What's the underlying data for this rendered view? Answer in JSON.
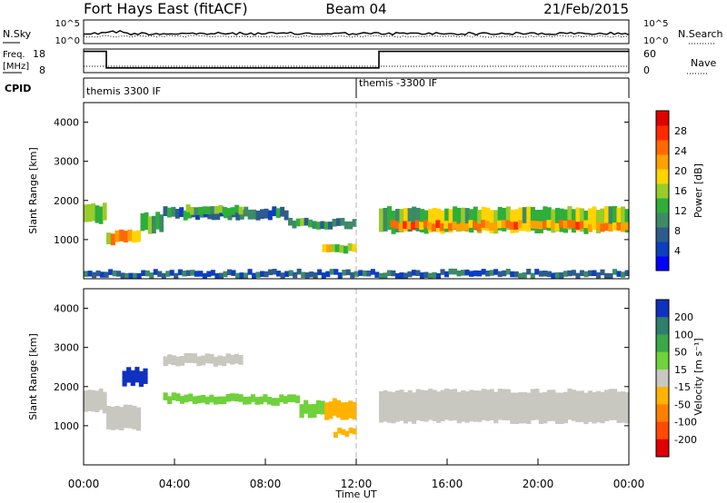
{
  "header": {
    "station": "Fort Hays East (fitACF)",
    "beam": "Beam 04",
    "date": "21/Feb/2015"
  },
  "strips": {
    "nsky": {
      "label": "N.Sky",
      "ticks_left": [
        "10^5",
        "10^0"
      ],
      "ticks_right": [
        "10^5",
        "10^0"
      ],
      "right_label": "N.Search"
    },
    "freq": {
      "label_line1": "Freq.",
      "label_line2": "[MHz]",
      "ticks_left": [
        "18",
        "8"
      ],
      "ticks_right": [
        "60",
        "0"
      ],
      "right_label": "Nave",
      "freq_steps": [
        {
          "t0": 0,
          "t1": 1.0,
          "mhz": 17
        },
        {
          "t0": 1.0,
          "t1": 13.0,
          "mhz": 10
        },
        {
          "t0": 13.0,
          "t1": 24.0,
          "mhz": 17
        }
      ],
      "nave_level": 13
    },
    "cpid": {
      "label": "CPID",
      "segments": [
        {
          "t_start": 0,
          "name": "themis 3300 IF"
        },
        {
          "t_start": 12.0,
          "name": "themis -3300 IF"
        }
      ]
    }
  },
  "chart_data": [
    {
      "type": "heatmap",
      "quantity": "power",
      "ylabel": "Slant Range [km]",
      "xlim": [
        0,
        24
      ],
      "ylim": [
        0,
        4500
      ],
      "yticks": [
        "1000",
        "2000",
        "3000",
        "4000"
      ],
      "colorbar": {
        "label": "Power [dB]",
        "ticks": [
          "4",
          "8",
          "12",
          "16",
          "20",
          "24",
          "28"
        ],
        "colors": [
          "#0000ff",
          "#0c3fbd",
          "#2f5b8c",
          "#3d8a67",
          "#2fae3a",
          "#9acb2b",
          "#ffd400",
          "#ffa100",
          "#ff6a00",
          "#ff2a00",
          "#e00000"
        ]
      },
      "bands": [
        {
          "t0": 0.0,
          "t1": 1.0,
          "r0": 1450,
          "r1": 1900,
          "p": 14
        },
        {
          "t0": 1.0,
          "t1": 2.5,
          "r0": 900,
          "r1": 1200,
          "p": 20
        },
        {
          "t0": 2.5,
          "t1": 3.5,
          "r0": 1200,
          "r1": 1650,
          "p": 12
        },
        {
          "t0": 3.5,
          "t1": 9.0,
          "r0": 1550,
          "r1": 1800,
          "p": 8
        },
        {
          "t0": 4.5,
          "t1": 7.0,
          "r0": 1650,
          "r1": 1850,
          "p": 12
        },
        {
          "t0": 9.0,
          "t1": 12.0,
          "r0": 1300,
          "r1": 1500,
          "p": 10
        },
        {
          "t0": 10.5,
          "t1": 12.0,
          "r0": 650,
          "r1": 850,
          "p": 16
        },
        {
          "t0": 13.0,
          "t1": 24.0,
          "r0": 1200,
          "r1": 1800,
          "p": 14
        },
        {
          "t0": 13.5,
          "t1": 24.0,
          "r0": 1250,
          "r1": 1450,
          "p": 22
        },
        {
          "t0": 0.0,
          "t1": 24.0,
          "r0": 50,
          "r1": 200,
          "p": 6
        }
      ]
    },
    {
      "type": "heatmap",
      "quantity": "velocity",
      "xlabel": "Time UT",
      "ylabel": "Slant Range [km]",
      "xlim": [
        0,
        24
      ],
      "ylim": [
        0,
        4500
      ],
      "xticks": [
        "00:00",
        "04:00",
        "08:00",
        "12:00",
        "16:00",
        "20:00",
        "00:00"
      ],
      "yticks": [
        "1000",
        "2000",
        "3000",
        "4000"
      ],
      "colorbar": {
        "label": "Velocity [m s⁻¹]",
        "ticks": [
          "200",
          "100",
          "50",
          "15",
          "-15",
          "-50",
          "-100",
          "-200"
        ],
        "colors": [
          "#1030c0",
          "#2e7f6e",
          "#3aa84a",
          "#6fd13b",
          "#c8c8c0",
          "#ffb300",
          "#ff8000",
          "#ff4a00",
          "#e00000"
        ]
      },
      "bands": [
        {
          "t0": 0.0,
          "t1": 1.0,
          "r0": 1350,
          "r1": 1900,
          "v": 0
        },
        {
          "t0": 1.0,
          "t1": 2.5,
          "r0": 900,
          "r1": 1500,
          "v": 0
        },
        {
          "t0": 1.7,
          "t1": 2.8,
          "r0": 2050,
          "r1": 2450,
          "v": 200
        },
        {
          "t0": 3.5,
          "t1": 7.0,
          "r0": 1600,
          "r1": 1800,
          "v": 30
        },
        {
          "t0": 3.5,
          "t1": 7.0,
          "r0": 2550,
          "r1": 2800,
          "v": 0
        },
        {
          "t0": 7.0,
          "t1": 9.5,
          "r0": 1550,
          "r1": 1750,
          "v": 30
        },
        {
          "t0": 9.5,
          "t1": 10.6,
          "r0": 1250,
          "r1": 1600,
          "v": 30
        },
        {
          "t0": 10.6,
          "t1": 12.0,
          "r0": 1200,
          "r1": 1650,
          "v": -40
        },
        {
          "t0": 11.0,
          "t1": 12.0,
          "r0": 750,
          "r1": 900,
          "v": -40
        },
        {
          "t0": 13.0,
          "t1": 24.0,
          "r0": 1100,
          "r1": 1900,
          "v": 0
        }
      ]
    }
  ]
}
